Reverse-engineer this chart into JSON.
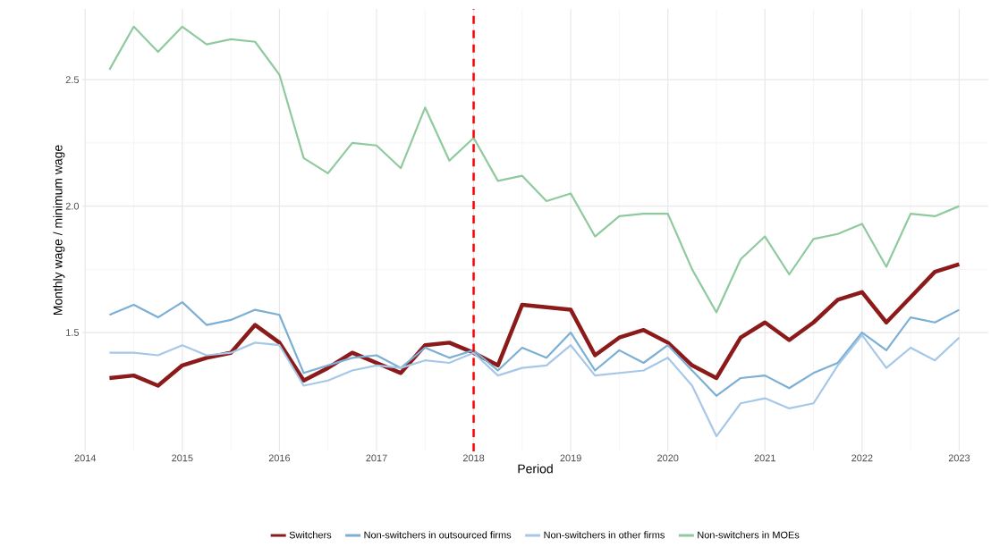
{
  "chart_data": {
    "type": "line",
    "xlabel": "Period",
    "ylabel": "Monthly wage / minimum wage",
    "x": [
      2014.25,
      2014.5,
      2014.75,
      2015,
      2015.25,
      2015.5,
      2015.75,
      2016,
      2016.25,
      2016.5,
      2016.75,
      2017,
      2017.25,
      2017.5,
      2017.75,
      2018,
      2018.25,
      2018.5,
      2018.75,
      2019,
      2019.25,
      2019.5,
      2019.75,
      2020,
      2020.25,
      2020.5,
      2020.75,
      2021,
      2021.25,
      2021.5,
      2021.75,
      2022,
      2022.25,
      2022.5,
      2022.75,
      2023
    ],
    "series": [
      {
        "name": "Switchers",
        "color": "#8b1a1a",
        "values": [
          1.32,
          1.33,
          1.29,
          1.37,
          1.4,
          1.42,
          1.53,
          1.46,
          1.31,
          1.36,
          1.42,
          1.38,
          1.34,
          1.45,
          1.46,
          1.42,
          1.37,
          1.61,
          1.6,
          1.59,
          1.41,
          1.48,
          1.51,
          1.46,
          1.37,
          1.32,
          1.48,
          1.54,
          1.47,
          1.54,
          1.63,
          1.66,
          1.54,
          1.64,
          1.74,
          1.77
        ]
      },
      {
        "name": "Non-switchers in outsourced firms",
        "color": "#7bafd4",
        "values": [
          1.57,
          1.61,
          1.56,
          1.62,
          1.53,
          1.55,
          1.59,
          1.57,
          1.34,
          1.37,
          1.4,
          1.41,
          1.36,
          1.44,
          1.4,
          1.43,
          1.35,
          1.44,
          1.4,
          1.5,
          1.35,
          1.43,
          1.38,
          1.45,
          1.35,
          1.25,
          1.32,
          1.33,
          1.28,
          1.34,
          1.38,
          1.5,
          1.43,
          1.56,
          1.54,
          1.59
        ]
      },
      {
        "name": "Non-switchers in other firms",
        "color": "#a6c8e8",
        "values": [
          1.42,
          1.42,
          1.41,
          1.45,
          1.41,
          1.42,
          1.46,
          1.45,
          1.29,
          1.31,
          1.35,
          1.37,
          1.36,
          1.39,
          1.38,
          1.42,
          1.33,
          1.36,
          1.37,
          1.45,
          1.33,
          1.34,
          1.35,
          1.4,
          1.29,
          1.09,
          1.22,
          1.24,
          1.2,
          1.22,
          1.37,
          1.49,
          1.36,
          1.44,
          1.39,
          1.48
        ]
      },
      {
        "name": "Non-switchers in MOEs",
        "color": "#8fca9e",
        "values": [
          2.54,
          2.71,
          2.61,
          2.71,
          2.64,
          2.66,
          2.65,
          2.52,
          2.19,
          2.13,
          2.25,
          2.24,
          2.15,
          2.39,
          2.18,
          2.27,
          2.1,
          2.12,
          2.02,
          2.05,
          1.88,
          1.96,
          1.97,
          1.97,
          1.75,
          1.58,
          1.79,
          1.88,
          1.73,
          1.87,
          1.89,
          1.93,
          1.76,
          1.97,
          1.96,
          2.0
        ]
      }
    ],
    "xlim": [
      2013.97,
      2023.3
    ],
    "ylim": [
      1.03,
      2.78
    ],
    "xticks": [
      2014,
      2015,
      2016,
      2017,
      2018,
      2019,
      2020,
      2021,
      2022,
      2023
    ],
    "yticks": [
      {
        "value": 1.5,
        "label": "1.5"
      },
      {
        "value": 2.0,
        "label": "2.0"
      },
      {
        "value": 2.5,
        "label": "2.5"
      }
    ],
    "ref_lines": [
      {
        "axis": "x",
        "value": 2018,
        "color": "#ff0000",
        "line_style": "dashed"
      }
    ],
    "grid": true,
    "legend": "bottom",
    "marker": "none",
    "line_style": "solid"
  }
}
